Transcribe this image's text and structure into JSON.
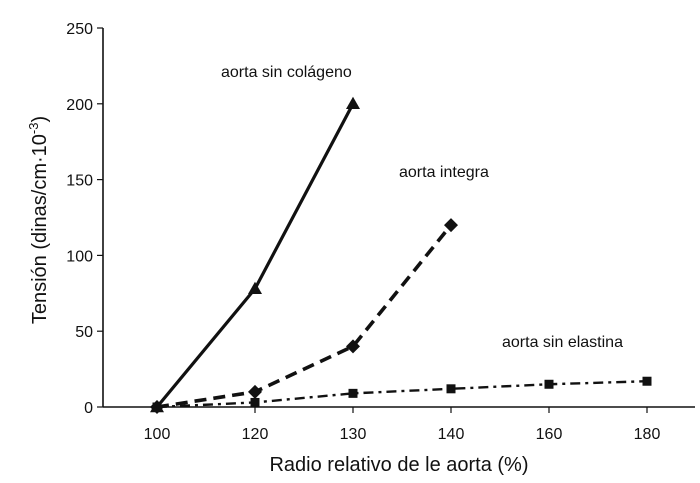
{
  "chart_data": {
    "type": "line",
    "xlabel": "Radio relativo de le aorta (%)",
    "ylabel_main": "Tensión (dinas/cm·10",
    "ylabel_sup": "-3",
    "ylabel_end": ")",
    "categories": [
      "100",
      "120",
      "130",
      "140",
      "160",
      "180"
    ],
    "yticks": [
      0,
      50,
      100,
      150,
      200,
      250
    ],
    "ylim": [
      0,
      250
    ],
    "grid": false,
    "series": [
      {
        "name": "aorta sin colágeno",
        "marker": "triangle",
        "line_style": "solid",
        "points": [
          {
            "x": "100",
            "y": 0
          },
          {
            "x": "120",
            "y": 78
          },
          {
            "x": "130",
            "y": 200
          }
        ]
      },
      {
        "name": "aorta integra",
        "marker": "diamond",
        "line_style": "dashed",
        "points": [
          {
            "x": "100",
            "y": 0
          },
          {
            "x": "120",
            "y": 10
          },
          {
            "x": "130",
            "y": 40
          },
          {
            "x": "140",
            "y": 120
          }
        ]
      },
      {
        "name": "aorta sin elastina",
        "marker": "square",
        "line_style": "dash-dot",
        "points": [
          {
            "x": "100",
            "y": 0
          },
          {
            "x": "120",
            "y": 3
          },
          {
            "x": "130",
            "y": 9
          },
          {
            "x": "140",
            "y": 12
          },
          {
            "x": "160",
            "y": 15
          },
          {
            "x": "180",
            "y": 17
          }
        ]
      }
    ],
    "colors": {
      "ink": "#111111"
    }
  }
}
